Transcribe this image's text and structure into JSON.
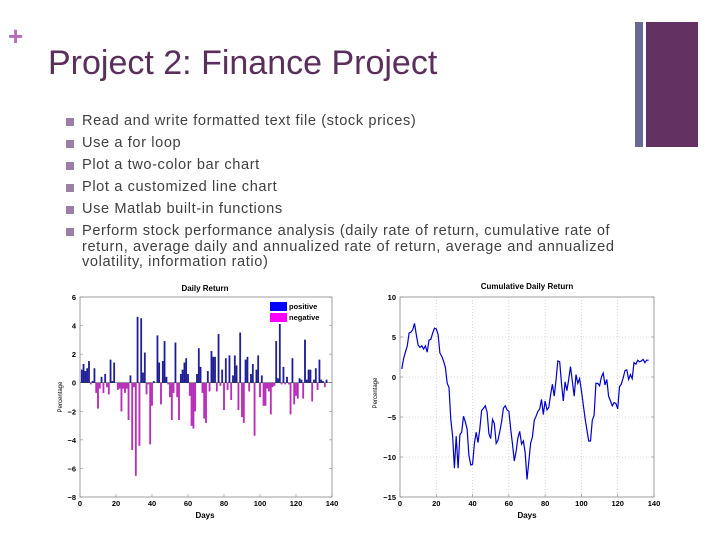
{
  "slide": {
    "plus_glyph": "+",
    "title": "Project 2: Finance Project",
    "colors": {
      "title": "#5a2f5c",
      "plus": "#b46fb8",
      "accent_bar": "#6a6894",
      "accent_block": "#643163",
      "bullet": "#9b7fa6",
      "text": "#404040"
    },
    "bullets": [
      "Read and write formatted text file (stock prices)",
      "Use a for loop",
      "Plot a  two-color bar chart",
      "Plot a customized line chart",
      "Use Matlab built-in functions",
      "Perform stock performance analysis (daily rate of return, cumulative rate of return, average daily and annualized rate of return, average and annualized volatility, information ratio)"
    ]
  },
  "chart_data": [
    {
      "type": "bar",
      "title": "Daily Return",
      "xlabel": "Days",
      "ylabel": "Percentage",
      "xlim": [
        0,
        140
      ],
      "ylim": [
        -8,
        6
      ],
      "xticks": [
        0,
        20,
        40,
        60,
        80,
        100,
        120,
        140
      ],
      "yticks": [
        -8,
        -6,
        -4,
        -2,
        0,
        2,
        4,
        6
      ],
      "grid": false,
      "legend": {
        "position": "top-right",
        "entries": [
          {
            "label": "positive",
            "color": "#0000ff"
          },
          {
            "label": "negative",
            "color": "#ff00ff"
          }
        ]
      },
      "x": [
        1,
        2,
        3,
        4,
        5,
        6,
        7,
        8,
        9,
        10,
        11,
        12,
        13,
        14,
        15,
        16,
        17,
        18,
        19,
        20,
        21,
        22,
        23,
        24,
        25,
        26,
        27,
        28,
        29,
        30,
        31,
        32,
        33,
        34,
        35,
        36,
        37,
        38,
        39,
        40,
        41,
        42,
        43,
        44,
        45,
        46,
        47,
        48,
        49,
        50,
        51,
        52,
        53,
        54,
        55,
        56,
        57,
        58,
        59,
        60,
        61,
        62,
        63,
        64,
        65,
        66,
        67,
        68,
        69,
        70,
        71,
        72,
        73,
        74,
        75,
        76,
        77,
        78,
        79,
        80,
        81,
        82,
        83,
        84,
        85,
        86,
        87,
        88,
        89,
        90,
        91,
        92,
        93,
        94,
        95,
        96,
        97,
        98,
        99,
        100,
        101,
        102,
        103,
        104,
        105,
        106,
        107,
        108,
        109,
        110,
        111,
        112,
        113,
        114,
        115,
        116,
        117,
        118,
        119,
        120,
        121,
        122,
        123,
        124,
        125,
        126,
        127,
        128,
        129,
        130,
        131,
        132,
        133,
        134,
        135,
        136,
        137
      ],
      "values": [
        0.9,
        1.3,
        0.8,
        1.0,
        1.5,
        -0.1,
        0.1,
        1.0,
        -0.7,
        -1.8,
        -0.4,
        0.4,
        -0.7,
        0.6,
        -0.3,
        -0.8,
        1.6,
        0.1,
        1.4,
        0.0,
        -0.5,
        -0.4,
        -2.0,
        -0.4,
        -0.7,
        -0.4,
        -2.6,
        0.5,
        -4.7,
        -0.3,
        -6.5,
        4.6,
        -4.4,
        4.5,
        0.7,
        2.1,
        -0.8,
        -0.1,
        -4.3,
        -1.6,
        0.1,
        0.0,
        3.3,
        1.4,
        -1.5,
        1.5,
        2.9,
        0.4,
        -0.1,
        -1.0,
        -2.6,
        -0.7,
        2.8,
        -1.0,
        -2.6,
        0.6,
        0.9,
        1.4,
        1.7,
        0.6,
        -0.9,
        -3.0,
        -3.2,
        -2.0,
        0.6,
        2.4,
        1.1,
        -0.7,
        -2.5,
        -2.8,
        0.8,
        -0.6,
        2.2,
        1.8,
        1.8,
        -0.6,
        3.4,
        -0.2,
        0.9,
        -1.9,
        1.7,
        -0.5,
        1.9,
        -1.2,
        0.5,
        1.9,
        1.2,
        -1.9,
        3.5,
        -2.4,
        -2.8,
        1.6,
        1.8,
        -0.6,
        0.6,
        1.3,
        -3.7,
        0.9,
        1.9,
        -1.0,
        0.5,
        -1.6,
        -1.6,
        -0.4,
        -0.6,
        -2.2,
        -0.3,
        -0.2,
        2.9,
        0.3,
        4.2,
        -0.1,
        1.1,
        -0.1,
        0.4,
        -0.1,
        -2.2,
        1.7,
        -1.5,
        -0.9,
        -1.1,
        0.3,
        0.2,
        -1.1,
        3.0,
        0.2,
        0.9,
        0.9,
        -1.3,
        0.2,
        1.0,
        -0.5,
        1.6,
        0.2,
        0.1,
        -0.3,
        0.2
      ]
    },
    {
      "type": "line",
      "title": "Cumulative Daily Return",
      "xlabel": "Days",
      "ylabel": "Percentage",
      "xlim": [
        0,
        140
      ],
      "ylim": [
        -15,
        10
      ],
      "xticks": [
        0,
        20,
        40,
        60,
        80,
        100,
        120,
        140
      ],
      "yticks": [
        -15,
        -10,
        -5,
        0,
        5,
        10
      ],
      "grid": true,
      "series": [
        {
          "name": "cumulative",
          "color": "#0000cc",
          "x": [
            1,
            2,
            3,
            4,
            5,
            6,
            7,
            8,
            9,
            10,
            11,
            12,
            13,
            14,
            15,
            16,
            17,
            18,
            19,
            20,
            21,
            22,
            23,
            24,
            25,
            26,
            27,
            28,
            29,
            30,
            31,
            32,
            33,
            34,
            35,
            36,
            37,
            38,
            39,
            40,
            41,
            42,
            43,
            44,
            45,
            46,
            47,
            48,
            49,
            50,
            51,
            52,
            53,
            54,
            55,
            56,
            57,
            58,
            59,
            60,
            61,
            62,
            63,
            64,
            65,
            66,
            67,
            68,
            69,
            70,
            71,
            72,
            73,
            74,
            75,
            76,
            77,
            78,
            79,
            80,
            81,
            82,
            83,
            84,
            85,
            86,
            87,
            88,
            89,
            90,
            91,
            92,
            93,
            94,
            95,
            96,
            97,
            98,
            99,
            100,
            101,
            102,
            103,
            104,
            105,
            106,
            107,
            108,
            109,
            110,
            111,
            112,
            113,
            114,
            115,
            116,
            117,
            118,
            119,
            120,
            121,
            122,
            123,
            124,
            125,
            126,
            127,
            128,
            129,
            130,
            131,
            132,
            133,
            134,
            135,
            136,
            137
          ],
          "values": [
            1.0,
            2.3,
            3.1,
            3.9,
            5.5,
            5.6,
            5.9,
            6.7,
            5.3,
            4.0,
            3.7,
            3.9,
            3.5,
            3.9,
            3.1,
            4.6,
            4.7,
            5.5,
            6.1,
            6.0,
            5.3,
            3.0,
            2.6,
            2.0,
            1.2,
            -0.8,
            -1.3,
            -5.3,
            -7.4,
            -11.4,
            -7.4,
            -11.4,
            -7.2,
            -6.9,
            -4.9,
            -5.6,
            -6.5,
            -9.8,
            -11.0,
            -10.9,
            -8.3,
            -6.9,
            -8.2,
            -6.5,
            -4.2,
            -3.9,
            -3.6,
            -4.4,
            -7.1,
            -7.7,
            -5.3,
            -5.8,
            -8.3,
            -7.9,
            -6.8,
            -5.6,
            -3.9,
            -3.6,
            -4.1,
            -4.3,
            -6.5,
            -8.4,
            -10.5,
            -9.3,
            -7.6,
            -6.8,
            -8.4,
            -8.0,
            -9.5,
            -12.8,
            -10.6,
            -8.3,
            -7.5,
            -5.4,
            -4.9,
            -4.3,
            -4.0,
            -2.8,
            -4.7,
            -3.0,
            -4.1,
            -3.8,
            -2.2,
            -0.9,
            -2.4,
            -0.4,
            2.0,
            1.9,
            -0.8,
            -3.0,
            -0.6,
            -1.7,
            -0.3,
            1.3,
            -0.6,
            -2.4,
            0.3,
            -0.8,
            -0.2,
            -1.7,
            -3.4,
            -5.2,
            -6.6,
            -8.0,
            -8.0,
            -5.4,
            -4.8,
            -0.8,
            -0.8,
            -1.1,
            0.0,
            0.5,
            -1.0,
            -0.3,
            -2.4,
            -3.0,
            -3.6,
            -3.2,
            -3.3,
            -4.0,
            -1.2,
            -0.9,
            -0.1,
            0.8,
            0.9,
            -0.3,
            0.3,
            -0.2,
            1.8,
            1.6,
            2.1,
            1.9,
            2.0,
            2.2,
            1.8,
            2.1,
            2.1
          ]
        }
      ]
    }
  ]
}
